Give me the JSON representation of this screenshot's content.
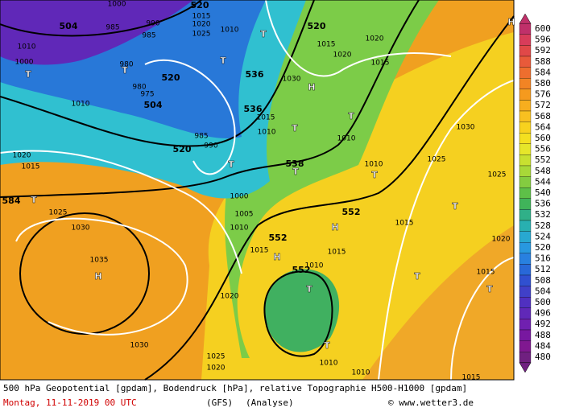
{
  "map": {
    "labels": [
      "504",
      "1000",
      "985",
      "990",
      "985",
      "520",
      "1015",
      "1020",
      "1025",
      "1010",
      "T",
      "520",
      "1020",
      "1015",
      "1020",
      "1015",
      "T",
      "T",
      "980",
      "1010",
      "1000",
      "T",
      "520",
      "980",
      "975",
      "504",
      "1010",
      "536",
      "1030",
      "H",
      "536",
      "1015",
      "1010",
      "T",
      "1010",
      "T",
      "985",
      "990",
      "520",
      "1020",
      "1015",
      "1030",
      "1025",
      "T",
      "538",
      "T",
      "1010",
      "T",
      "1025",
      "1000",
      "584",
      "T",
      "1025",
      "552",
      "T",
      "1005",
      "1030",
      "1010",
      "552",
      "H",
      "1015",
      "1020",
      "1015",
      "1015",
      "H",
      "1035",
      "552",
      "1010",
      "T",
      "T",
      "H",
      "1015",
      "T",
      "1020",
      "1030",
      "T",
      "1025",
      "1020",
      "1010",
      "1010",
      "1015",
      "H"
    ]
  },
  "colorbar": {
    "ticks": [
      600,
      596,
      592,
      588,
      584,
      580,
      576,
      572,
      568,
      564,
      560,
      556,
      552,
      548,
      544,
      540,
      536,
      532,
      528,
      524,
      520,
      516,
      512,
      508,
      504,
      500,
      496,
      492,
      488,
      484,
      480
    ],
    "colors": [
      "#c0306a",
      "#d83c5a",
      "#e04848",
      "#e85a3a",
      "#ee6e2e",
      "#f28424",
      "#f59a1e",
      "#f7ae1e",
      "#f8c020",
      "#f8d21e",
      "#f4e020",
      "#e6e62a",
      "#c8e030",
      "#a8d838",
      "#84cc40",
      "#5ec048",
      "#40b45a",
      "#30b088",
      "#28b0b0",
      "#28a8d0",
      "#2898e0",
      "#2880e0",
      "#2868d8",
      "#3050d0",
      "#4040c8",
      "#5030c0",
      "#6028b8",
      "#7020b0",
      "#7818a0",
      "#801890",
      "#702080"
    ]
  },
  "caption": {
    "line1": "500 hPa Geopotential [gpdam], Bodendruck [hPa], relative Topographie H500-H1000 [gpdam]",
    "date": "Montag, 11-11-2019  00 UTC",
    "model": "(GFS)",
    "analysis": "(Analyse)",
    "source": "© www.wetter3.de"
  }
}
